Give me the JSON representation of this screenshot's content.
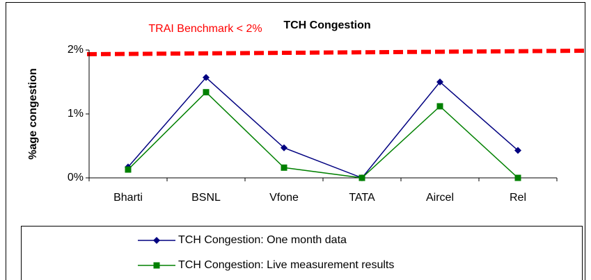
{
  "chart_data": {
    "type": "line",
    "title": "TCH Congestion",
    "annotation": "TRAI Benchmark < 2%",
    "y_label": "%age congestion",
    "categories": [
      "Bharti",
      "BSNL",
      "Vfone",
      "TATA",
      "Aircel",
      "Rel"
    ],
    "series": [
      {
        "name": "TCH Congestion: One month data",
        "color": "#000080",
        "marker": "diamond",
        "values": [
          0.17,
          1.57,
          0.47,
          0.0,
          1.5,
          0.43
        ]
      },
      {
        "name": "TCH Congestion: Live measurement results",
        "color": "#008000",
        "marker": "square",
        "values": [
          0.13,
          1.34,
          0.16,
          0.0,
          1.12,
          0.0
        ]
      }
    ],
    "ylim": [
      0,
      2
    ],
    "yticks": [
      {
        "value": 0,
        "label": "0%"
      },
      {
        "value": 1,
        "label": "1%"
      },
      {
        "value": 2,
        "label": "2%"
      }
    ],
    "grid": false
  }
}
